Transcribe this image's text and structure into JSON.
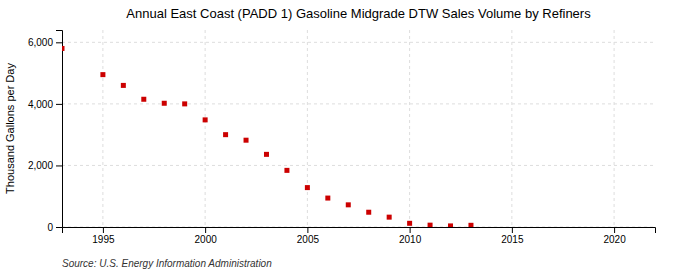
{
  "chart_data": {
    "type": "scatter",
    "title": "Annual East Coast (PADD 1) Gasoline Midgrade DTW Sales Volume by Refiners",
    "y_label": "Thousand Gallons per Day",
    "annotations": [
      "Source: U.S. Energy Information Administration"
    ],
    "x": [
      1993,
      1995,
      1996,
      1997,
      1998,
      1999,
      2000,
      2001,
      2002,
      2003,
      2004,
      2005,
      2006,
      2007,
      2008,
      2009,
      2010,
      2011,
      2012,
      2013
    ],
    "values": [
      5800,
      4950,
      4600,
      4150,
      4020,
      4000,
      3480,
      3000,
      2820,
      2360,
      1840,
      1280,
      940,
      720,
      480,
      320,
      120,
      60,
      35,
      55
    ],
    "color": "#cc0000",
    "marker": "square",
    "grid": true,
    "xlim": [
      1993,
      2022
    ],
    "xticks": [
      1995,
      2000,
      2005,
      2010,
      2015,
      2020
    ],
    "ylim": [
      0,
      6400
    ],
    "yticks": [
      0,
      {
        "value": 2000,
        "label": "2,000"
      },
      {
        "value": 4000,
        "label": "4,000"
      },
      {
        "value": 6000,
        "label": "6,000"
      }
    ]
  }
}
